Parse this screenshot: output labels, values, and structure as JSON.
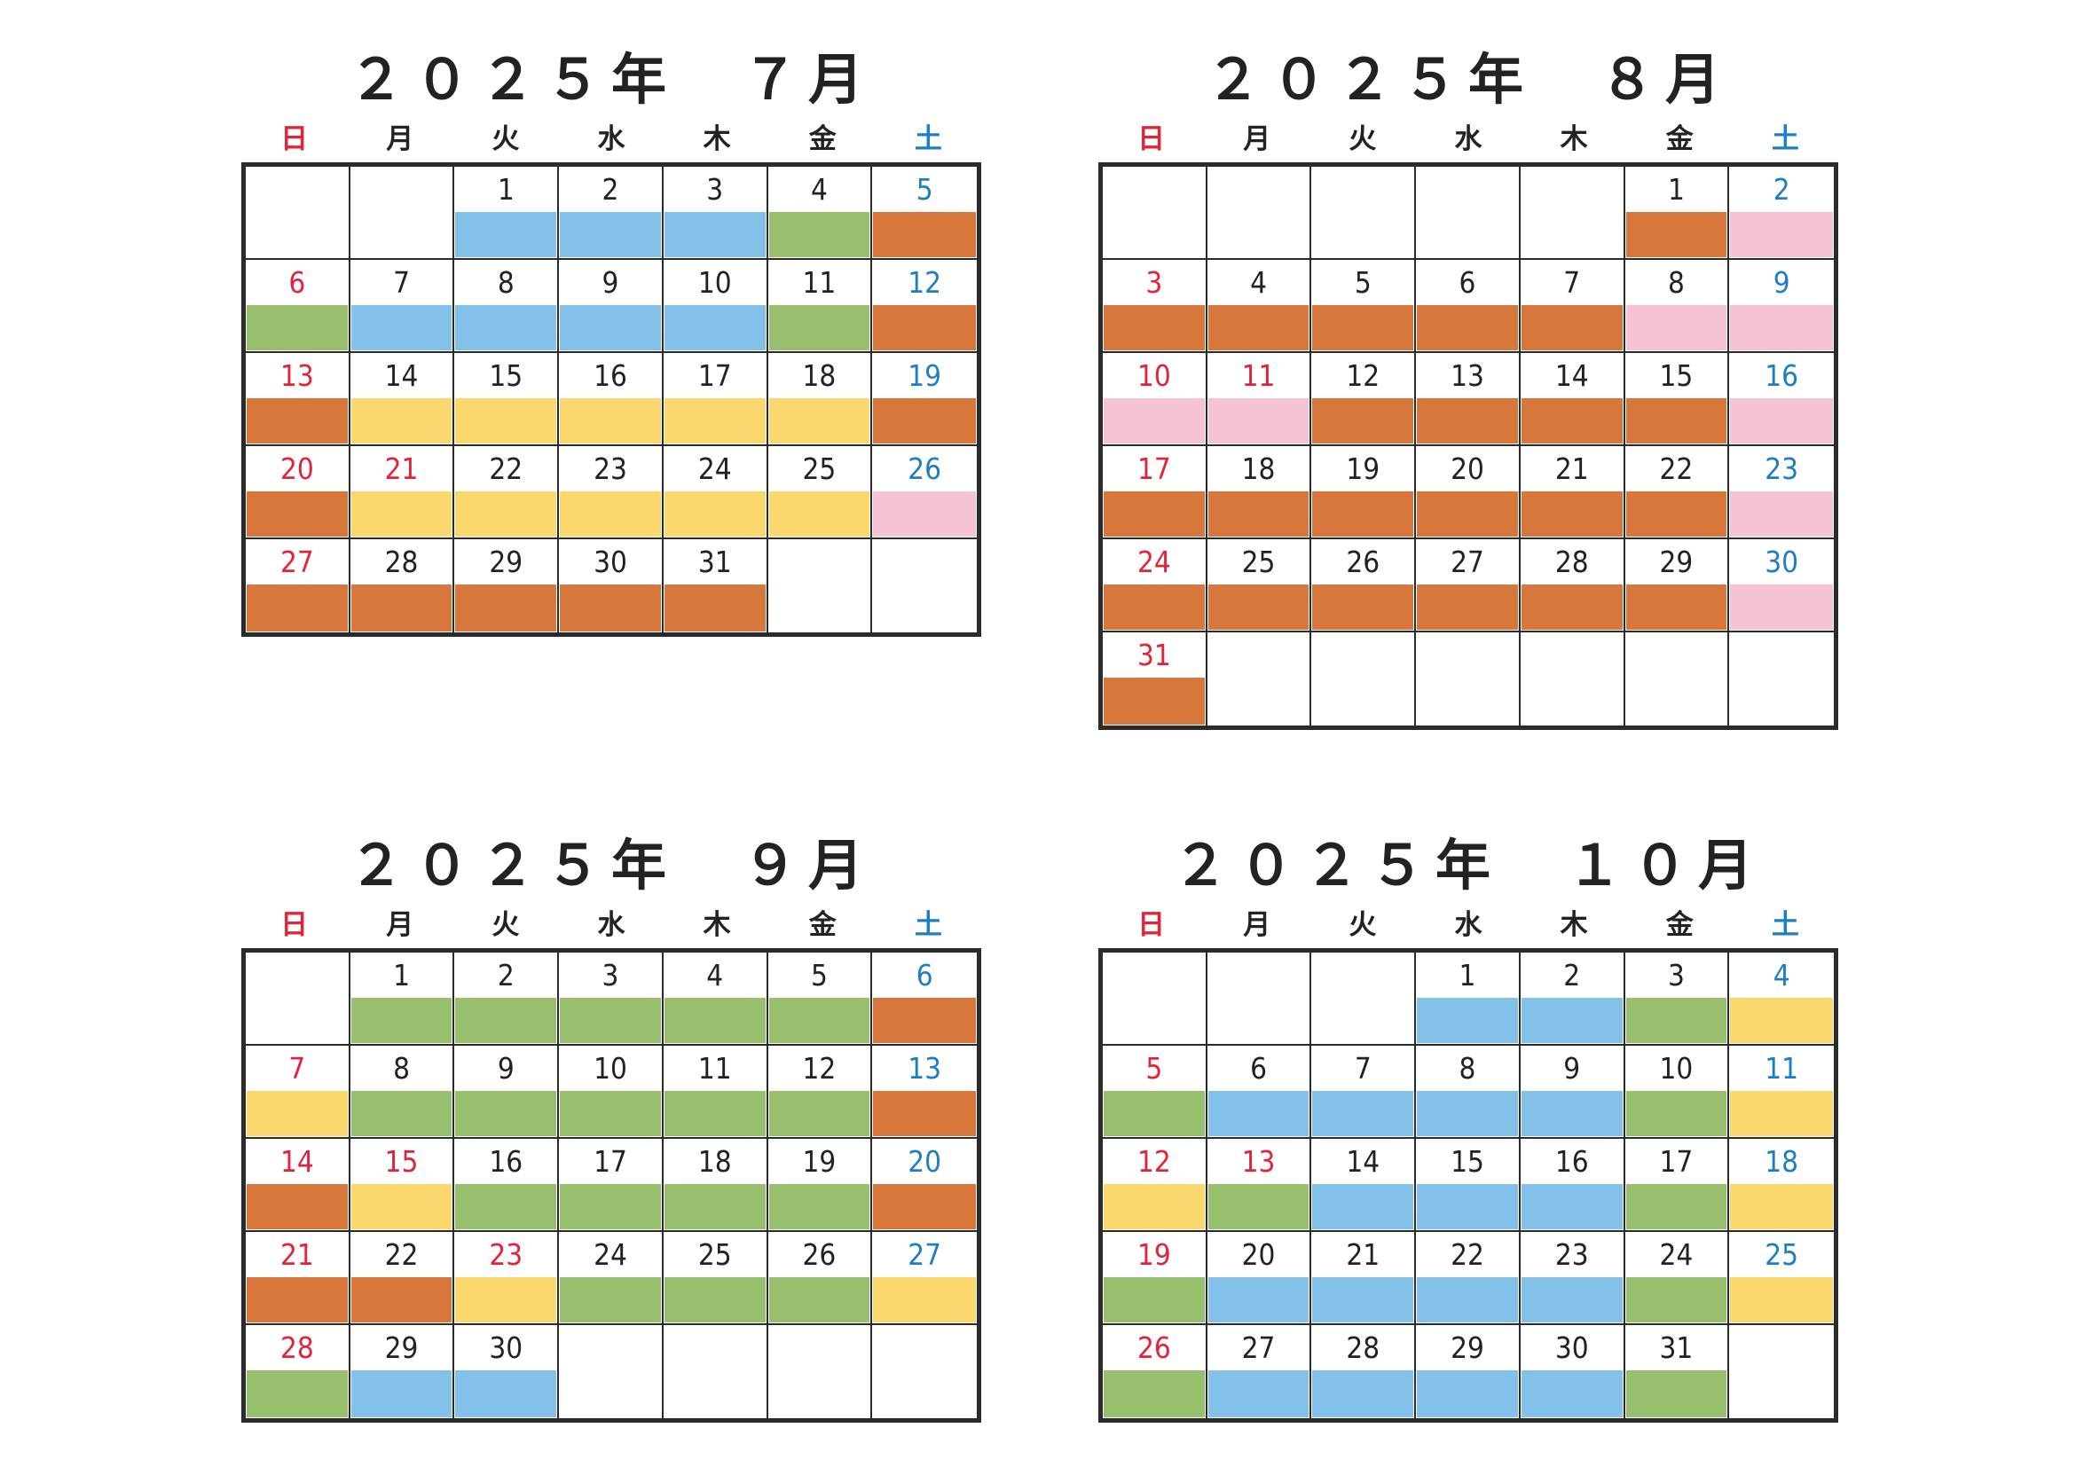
{
  "weekdays": [
    "日",
    "月",
    "火",
    "水",
    "木",
    "金",
    "土"
  ],
  "colors": {
    "O": "#d8773b",
    "B": "#83c1e8",
    "G": "#98bf6e",
    "Y": "#fbd86e",
    "P": "#f6c3d4",
    "sunday_text": "#e0243a",
    "saturday_text": "#1d7ec2"
  },
  "months": [
    {
      "title": "２０２５年　７月",
      "first_weekday": 2,
      "days": 31,
      "holidays": [
        21
      ],
      "fills": [
        "B",
        "B",
        "B",
        "G",
        "O",
        "G",
        "B",
        "B",
        "B",
        "B",
        "G",
        "O",
        "O",
        "Y",
        "Y",
        "Y",
        "Y",
        "Y",
        "O",
        "O",
        "Y",
        "Y",
        "Y",
        "Y",
        "Y",
        "P",
        "O",
        "O",
        "O",
        "O",
        "O"
      ]
    },
    {
      "title": "２０２５年　８月",
      "first_weekday": 5,
      "days": 31,
      "holidays": [
        11
      ],
      "fills": [
        "O",
        "P",
        "O",
        "O",
        "O",
        "O",
        "O",
        "P",
        "P",
        "P",
        "P",
        "O",
        "O",
        "O",
        "O",
        "P",
        "O",
        "O",
        "O",
        "O",
        "O",
        "O",
        "P",
        "O",
        "O",
        "O",
        "O",
        "O",
        "O",
        "P",
        "O"
      ]
    },
    {
      "title": "２０２５年　９月",
      "first_weekday": 1,
      "days": 30,
      "holidays": [
        15,
        23
      ],
      "fills": [
        "G",
        "G",
        "G",
        "G",
        "G",
        "O",
        "Y",
        "G",
        "G",
        "G",
        "G",
        "G",
        "O",
        "O",
        "Y",
        "G",
        "G",
        "G",
        "G",
        "O",
        "O",
        "O",
        "Y",
        "G",
        "G",
        "G",
        "Y",
        "G",
        "B",
        "B"
      ]
    },
    {
      "title": "２０２５年　１０月",
      "first_weekday": 3,
      "days": 31,
      "holidays": [
        13
      ],
      "fills": [
        "B",
        "B",
        "G",
        "Y",
        "G",
        "B",
        "B",
        "B",
        "B",
        "G",
        "Y",
        "Y",
        "G",
        "B",
        "B",
        "B",
        "G",
        "Y",
        "G",
        "B",
        "B",
        "B",
        "B",
        "G",
        "Y",
        "G",
        "B",
        "B",
        "B",
        "B",
        "G"
      ]
    }
  ]
}
